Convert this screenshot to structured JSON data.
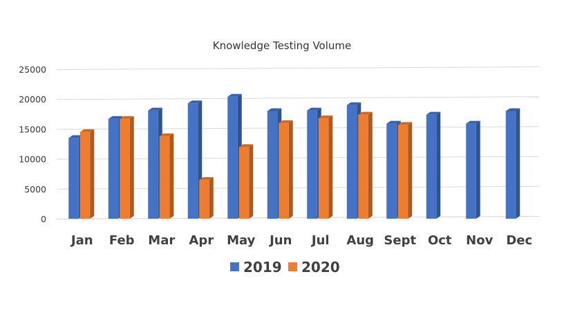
{
  "chart_data": {
    "type": "bar",
    "title": "Knowledge Testing Volume",
    "xlabel": "",
    "ylabel": "",
    "ylim": [
      0,
      25000
    ],
    "yticks": [
      0,
      5000,
      10000,
      15000,
      20000,
      25000
    ],
    "grid": true,
    "legend": "bottom",
    "categories": [
      "Jan",
      "Feb",
      "Mar",
      "Apr",
      "May",
      "Jun",
      "Jul",
      "Aug",
      "Sept",
      "Oct",
      "Nov",
      "Dec"
    ],
    "series": [
      {
        "name": "2019",
        "color": "#4472C4",
        "values": [
          13500,
          16700,
          18100,
          19300,
          20400,
          18000,
          18100,
          19000,
          15900,
          17400,
          15900,
          18000
        ]
      },
      {
        "name": "2020",
        "color": "#ED7D31",
        "values": [
          14500,
          16700,
          13800,
          6500,
          12000,
          16000,
          16800,
          17400,
          15700,
          null,
          null,
          null
        ]
      }
    ]
  }
}
